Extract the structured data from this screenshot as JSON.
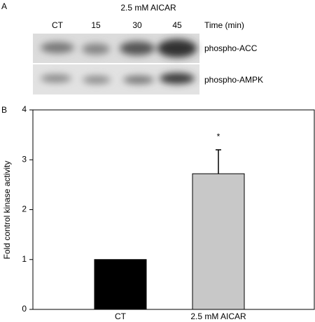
{
  "panel_a": {
    "label": "A",
    "treatment": "2.5 mM AICAR",
    "lanes": [
      "CT",
      "15",
      "30",
      "45"
    ],
    "time_label": "Time (min)",
    "rows": [
      "phospho-ACC",
      "phospho-AMPK"
    ]
  },
  "chart_data": {
    "type": "bar",
    "label": "B",
    "y_label": "Fold control kinase activity",
    "categories": [
      "CT",
      "2.5 mM AICAR"
    ],
    "values": [
      1,
      2.72
    ],
    "errors": [
      null,
      0.48
    ],
    "colors": [
      "#000000",
      "#c8c8c8"
    ],
    "annotation": "*",
    "ylim": [
      0,
      4
    ],
    "yticks": [
      0,
      1,
      2,
      3,
      4
    ]
  }
}
